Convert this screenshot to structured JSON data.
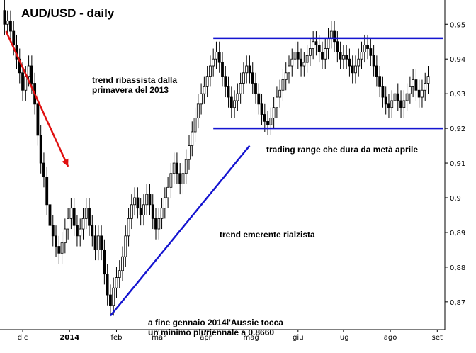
{
  "chart_data": {
    "type": "candlestick",
    "title": "AUD/USD - daily",
    "ylim": [
      0.862,
      0.957
    ],
    "yticks": [
      "0,87",
      "0,88",
      "0,89",
      "0,9",
      "0,91",
      "0,92",
      "0,93",
      "0,94",
      "0,95"
    ],
    "ytick_values": [
      0.87,
      0.88,
      0.89,
      0.9,
      0.91,
      0.92,
      0.93,
      0.94,
      0.95
    ],
    "xticks": [
      "dic",
      "2014",
      "feb",
      "mar",
      "apr",
      "mag",
      "giu",
      "lug",
      "ago",
      "set"
    ],
    "x": [
      "2013-11-19",
      "2013-11-21",
      "2013-11-23",
      "2013-11-25",
      "2013-11-27",
      "2013-11-29",
      "2013-12-01",
      "2013-12-03",
      "2013-12-05",
      "2013-12-07",
      "2013-12-09",
      "2013-12-11",
      "2013-12-13",
      "2013-12-15",
      "2013-12-17",
      "2013-12-19",
      "2013-12-21",
      "2013-12-23",
      "2013-12-25",
      "2013-12-27",
      "2013-12-29",
      "2013-12-31",
      "2014-01-02",
      "2014-01-04",
      "2014-01-06",
      "2014-01-08",
      "2014-01-10",
      "2014-01-12",
      "2014-01-14",
      "2014-01-16",
      "2014-01-18",
      "2014-01-20",
      "2014-01-22",
      "2014-01-24",
      "2014-01-26",
      "2014-01-28",
      "2014-01-30",
      "2014-02-01",
      "2014-02-03",
      "2014-02-05",
      "2014-02-07",
      "2014-02-09",
      "2014-02-11",
      "2014-02-13",
      "2014-02-15",
      "2014-02-17",
      "2014-02-19",
      "2014-02-21",
      "2014-02-23",
      "2014-02-25",
      "2014-02-27",
      "2014-03-01",
      "2014-03-03",
      "2014-03-05",
      "2014-03-07",
      "2014-03-09",
      "2014-03-11",
      "2014-03-13",
      "2014-03-15",
      "2014-03-17",
      "2014-03-19",
      "2014-03-21",
      "2014-03-23",
      "2014-03-25",
      "2014-03-27",
      "2014-03-29",
      "2014-03-31",
      "2014-04-02",
      "2014-04-04",
      "2014-04-06",
      "2014-04-08",
      "2014-04-10",
      "2014-04-12",
      "2014-04-14",
      "2014-04-16",
      "2014-04-18",
      "2014-04-20",
      "2014-04-22",
      "2014-04-24",
      "2014-04-26",
      "2014-04-28",
      "2014-04-30",
      "2014-05-02",
      "2014-05-04",
      "2014-05-06",
      "2014-05-08",
      "2014-05-10",
      "2014-05-12",
      "2014-05-14",
      "2014-05-16",
      "2014-05-18",
      "2014-05-20",
      "2014-05-22",
      "2014-05-24",
      "2014-05-26",
      "2014-05-28",
      "2014-05-30",
      "2014-06-01",
      "2014-06-03",
      "2014-06-05",
      "2014-06-07",
      "2014-06-09",
      "2014-06-11",
      "2014-06-13",
      "2014-06-15",
      "2014-06-17",
      "2014-06-19",
      "2014-06-21",
      "2014-06-23",
      "2014-06-25",
      "2014-06-27",
      "2014-06-29",
      "2014-07-01",
      "2014-07-03",
      "2014-07-05",
      "2014-07-07",
      "2014-07-09",
      "2014-07-11",
      "2014-07-13",
      "2014-07-15",
      "2014-07-17",
      "2014-07-19",
      "2014-07-21",
      "2014-07-23",
      "2014-07-25",
      "2014-07-27",
      "2014-07-29",
      "2014-07-31",
      "2014-08-02",
      "2014-08-04",
      "2014-08-06",
      "2014-08-08",
      "2014-08-10",
      "2014-08-12",
      "2014-08-14",
      "2014-08-16",
      "2014-08-18",
      "2014-08-20",
      "2014-08-22",
      "2014-08-24",
      "2014-08-26"
    ],
    "close": [
      0.95,
      0.951,
      0.948,
      0.944,
      0.94,
      0.936,
      0.931,
      0.935,
      0.938,
      0.933,
      0.927,
      0.918,
      0.91,
      0.906,
      0.898,
      0.892,
      0.889,
      0.886,
      0.884,
      0.887,
      0.891,
      0.894,
      0.897,
      0.892,
      0.889,
      0.891,
      0.894,
      0.897,
      0.892,
      0.889,
      0.885,
      0.889,
      0.885,
      0.878,
      0.872,
      0.869,
      0.874,
      0.877,
      0.879,
      0.883,
      0.889,
      0.894,
      0.898,
      0.9,
      0.897,
      0.895,
      0.898,
      0.901,
      0.898,
      0.894,
      0.891,
      0.894,
      0.897,
      0.9,
      0.903,
      0.907,
      0.91,
      0.907,
      0.904,
      0.907,
      0.911,
      0.915,
      0.919,
      0.923,
      0.927,
      0.93,
      0.932,
      0.935,
      0.938,
      0.94,
      0.942,
      0.939,
      0.935,
      0.932,
      0.929,
      0.926,
      0.928,
      0.93,
      0.933,
      0.936,
      0.938,
      0.936,
      0.933,
      0.93,
      0.927,
      0.924,
      0.922,
      0.921,
      0.923,
      0.926,
      0.929,
      0.931,
      0.934,
      0.936,
      0.938,
      0.94,
      0.942,
      0.94,
      0.938,
      0.939,
      0.941,
      0.943,
      0.945,
      0.944,
      0.942,
      0.94,
      0.943,
      0.946,
      0.948,
      0.945,
      0.942,
      0.94,
      0.941,
      0.94,
      0.938,
      0.936,
      0.938,
      0.94,
      0.942,
      0.944,
      0.943,
      0.941,
      0.938,
      0.935,
      0.932,
      0.929,
      0.927,
      0.926,
      0.928,
      0.93,
      0.928,
      0.926,
      0.928,
      0.93,
      0.932,
      0.934,
      0.931,
      0.929,
      0.931,
      0.933,
      0.935
    ],
    "open_delta": 0.004,
    "wick": 0.003,
    "lines": [
      {
        "kind": "resistance",
        "from": [
          "2014-04-06",
          0.946
        ],
        "to": [
          "2014-09-05",
          0.946
        ],
        "color": "#1515d0"
      },
      {
        "kind": "support",
        "from": [
          "2014-04-06",
          0.92
        ],
        "to": [
          "2014-09-05",
          0.92
        ],
        "color": "#1515d0"
      },
      {
        "kind": "uptrend",
        "from": [
          "2014-01-28",
          0.866
        ],
        "to": [
          "2014-04-30",
          0.915
        ],
        "color": "#1515d0"
      }
    ],
    "arrow": {
      "from": [
        "2013-11-20",
        0.948
      ],
      "to": [
        "2013-12-31",
        0.909
      ],
      "color": "#e01010"
    },
    "annotations": {
      "downtrend": "trend ribassista dalla\nprimavera del 2013",
      "range": "trading range che dura da metà aprile",
      "uptrend": "trend emerente rialzista",
      "low": "a fine gennaio 2014l'Aussie tocca\nun minimo pluriennale a 0.8660"
    },
    "colors": {
      "candle": "#000000",
      "line": "#1515d0",
      "arrow": "#e01010"
    },
    "grid": false,
    "yaxis_position": "right"
  }
}
